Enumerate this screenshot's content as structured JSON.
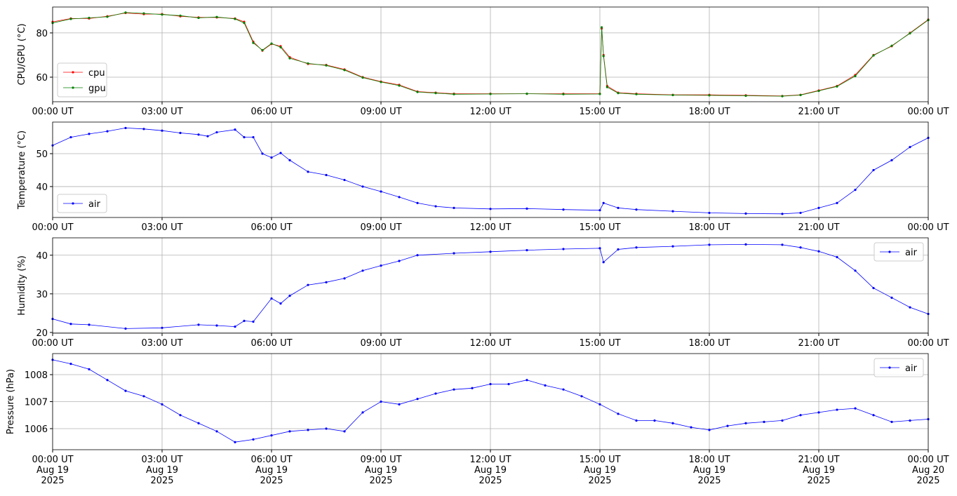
{
  "chart_data": [
    {
      "type": "line",
      "y_label": "CPU/GPU (°C)",
      "x": [
        "2025-08-19 00:00",
        "2025-08-19 00:30",
        "2025-08-19 01:00",
        "2025-08-19 01:30",
        "2025-08-19 02:00",
        "2025-08-19 02:30",
        "2025-08-19 03:00",
        "2025-08-19 03:30",
        "2025-08-19 04:00",
        "2025-08-19 04:30",
        "2025-08-19 05:00",
        "2025-08-19 05:15",
        "2025-08-19 05:30",
        "2025-08-19 05:45",
        "2025-08-19 06:00",
        "2025-08-19 06:15",
        "2025-08-19 06:30",
        "2025-08-19 07:00",
        "2025-08-19 07:30",
        "2025-08-19 08:00",
        "2025-08-19 08:30",
        "2025-08-19 09:00",
        "2025-08-19 09:30",
        "2025-08-19 10:00",
        "2025-08-19 10:30",
        "2025-08-19 11:00",
        "2025-08-19 12:00",
        "2025-08-19 13:00",
        "2025-08-19 14:00",
        "2025-08-19 15:00",
        "2025-08-19 15:03",
        "2025-08-19 15:06",
        "2025-08-19 15:12",
        "2025-08-19 15:30",
        "2025-08-19 16:00",
        "2025-08-19 17:00",
        "2025-08-19 18:00",
        "2025-08-19 19:00",
        "2025-08-19 20:00",
        "2025-08-19 20:30",
        "2025-08-19 21:00",
        "2025-08-19 21:30",
        "2025-08-19 22:00",
        "2025-08-19 22:30",
        "2025-08-19 23:00",
        "2025-08-19 23:30",
        "2025-08-20 00:00"
      ],
      "series": [
        {
          "name": "cpu",
          "color": "#ff0000",
          "values": [
            85,
            86.5,
            86.5,
            87.5,
            89,
            88.5,
            88.5,
            87.5,
            87,
            87,
            86.5,
            85,
            76,
            72,
            75,
            74,
            69,
            66,
            65.5,
            63.5,
            60,
            58,
            56.5,
            53.5,
            53,
            52.5,
            52.5,
            52.5,
            52.5,
            52.5,
            82,
            70,
            56,
            53,
            52.5,
            52,
            52,
            51.8,
            51.5,
            52,
            54,
            56,
            61,
            70,
            74,
            80,
            86
          ]
        },
        {
          "name": "gpu",
          "color": "#008000",
          "values": [
            84.5,
            86.3,
            86.8,
            87.3,
            89.2,
            88.8,
            88.3,
            87.8,
            86.8,
            87.2,
            86.3,
            84.5,
            75.5,
            72.2,
            75.2,
            73.5,
            68.5,
            66.2,
            65.3,
            63.2,
            59.8,
            57.8,
            56.2,
            53.3,
            52.8,
            52.3,
            52.4,
            52.5,
            52.3,
            52.4,
            82.5,
            69.5,
            55.5,
            52.8,
            52.3,
            51.9,
            51.8,
            51.6,
            51.4,
            51.9,
            53.8,
            55.8,
            60.5,
            69.8,
            74.2,
            79.8,
            85.8
          ]
        }
      ],
      "xlim": [
        "2025-08-19 00:00",
        "2025-08-20 00:00"
      ],
      "xticks": [
        {
          "value": "2025-08-19 00:00",
          "label": "00:00 UT"
        },
        {
          "value": "2025-08-19 03:00",
          "label": "03:00 UT"
        },
        {
          "value": "2025-08-19 06:00",
          "label": "06:00 UT"
        },
        {
          "value": "2025-08-19 09:00",
          "label": "09:00 UT"
        },
        {
          "value": "2025-08-19 12:00",
          "label": "12:00 UT"
        },
        {
          "value": "2025-08-19 15:00",
          "label": "15:00 UT"
        },
        {
          "value": "2025-08-19 18:00",
          "label": "18:00 UT"
        },
        {
          "value": "2025-08-19 21:00",
          "label": "21:00 UT"
        },
        {
          "value": "2025-08-20 00:00",
          "label": "00:00 UT"
        }
      ],
      "ylim": [
        48.9,
        91.7
      ],
      "yticks": [
        60,
        80
      ],
      "grid": true,
      "legend": "lower left"
    },
    {
      "type": "line",
      "y_label": "Temperature (°C)",
      "x": [
        "2025-08-19 00:00",
        "2025-08-19 00:30",
        "2025-08-19 01:00",
        "2025-08-19 01:30",
        "2025-08-19 02:00",
        "2025-08-19 02:30",
        "2025-08-19 03:00",
        "2025-08-19 03:30",
        "2025-08-19 04:00",
        "2025-08-19 04:15",
        "2025-08-19 04:30",
        "2025-08-19 05:00",
        "2025-08-19 05:15",
        "2025-08-19 05:30",
        "2025-08-19 05:45",
        "2025-08-19 06:00",
        "2025-08-19 06:15",
        "2025-08-19 06:30",
        "2025-08-19 07:00",
        "2025-08-19 07:30",
        "2025-08-19 08:00",
        "2025-08-19 08:30",
        "2025-08-19 09:00",
        "2025-08-19 09:30",
        "2025-08-19 10:00",
        "2025-08-19 10:30",
        "2025-08-19 11:00",
        "2025-08-19 12:00",
        "2025-08-19 13:00",
        "2025-08-19 14:00",
        "2025-08-19 15:00",
        "2025-08-19 15:06",
        "2025-08-19 15:30",
        "2025-08-19 16:00",
        "2025-08-19 17:00",
        "2025-08-19 18:00",
        "2025-08-19 19:00",
        "2025-08-19 20:00",
        "2025-08-19 20:30",
        "2025-08-19 21:00",
        "2025-08-19 21:30",
        "2025-08-19 22:00",
        "2025-08-19 22:30",
        "2025-08-19 23:00",
        "2025-08-19 23:30",
        "2025-08-20 00:00"
      ],
      "series": [
        {
          "name": "air",
          "color": "#0000ff",
          "values": [
            52.5,
            55,
            56,
            56.8,
            57.8,
            57.5,
            57,
            56.3,
            55.8,
            55.3,
            56.5,
            57.3,
            55,
            55,
            50,
            48.8,
            50.2,
            48,
            44.5,
            43.5,
            42,
            40,
            38.5,
            36.8,
            35,
            34,
            33.5,
            33.2,
            33.3,
            33,
            32.8,
            35,
            33.5,
            33,
            32.5,
            32,
            31.8,
            31.7,
            32,
            33.5,
            35,
            39,
            45,
            48,
            52,
            54.8
          ]
        }
      ],
      "xlim": [
        "2025-08-19 00:00",
        "2025-08-20 00:00"
      ],
      "xticks": [
        {
          "value": "2025-08-19 00:00",
          "label": "00:00 UT"
        },
        {
          "value": "2025-08-19 03:00",
          "label": "03:00 UT"
        },
        {
          "value": "2025-08-19 06:00",
          "label": "06:00 UT"
        },
        {
          "value": "2025-08-19 09:00",
          "label": "09:00 UT"
        },
        {
          "value": "2025-08-19 12:00",
          "label": "12:00 UT"
        },
        {
          "value": "2025-08-19 15:00",
          "label": "15:00 UT"
        },
        {
          "value": "2025-08-19 18:00",
          "label": "18:00 UT"
        },
        {
          "value": "2025-08-19 21:00",
          "label": "21:00 UT"
        },
        {
          "value": "2025-08-20 00:00",
          "label": "00:00 UT"
        }
      ],
      "ylim": [
        30.6,
        59.6
      ],
      "yticks": [
        40,
        50
      ],
      "grid": true,
      "legend": "lower left"
    },
    {
      "type": "line",
      "y_label": "Humidity (%)",
      "x": [
        "2025-08-19 00:00",
        "2025-08-19 00:30",
        "2025-08-19 01:00",
        "2025-08-19 02:00",
        "2025-08-19 03:00",
        "2025-08-19 04:00",
        "2025-08-19 04:30",
        "2025-08-19 05:00",
        "2025-08-19 05:15",
        "2025-08-19 05:30",
        "2025-08-19 06:00",
        "2025-08-19 06:15",
        "2025-08-19 06:30",
        "2025-08-19 07:00",
        "2025-08-19 07:30",
        "2025-08-19 08:00",
        "2025-08-19 08:30",
        "2025-08-19 09:00",
        "2025-08-19 09:30",
        "2025-08-19 10:00",
        "2025-08-19 11:00",
        "2025-08-19 12:00",
        "2025-08-19 13:00",
        "2025-08-19 14:00",
        "2025-08-19 15:00",
        "2025-08-19 15:06",
        "2025-08-19 15:30",
        "2025-08-19 16:00",
        "2025-08-19 17:00",
        "2025-08-19 18:00",
        "2025-08-19 19:00",
        "2025-08-19 20:00",
        "2025-08-19 20:30",
        "2025-08-19 21:00",
        "2025-08-19 21:30",
        "2025-08-19 22:00",
        "2025-08-19 22:30",
        "2025-08-19 23:00",
        "2025-08-19 23:30",
        "2025-08-20 00:00"
      ],
      "series": [
        {
          "name": "air",
          "color": "#0000ff",
          "values": [
            23.5,
            22.2,
            22,
            21,
            21.2,
            22,
            21.8,
            21.5,
            23,
            22.8,
            28.8,
            27.5,
            29.5,
            32.3,
            33,
            34,
            36,
            37.3,
            38.5,
            40,
            40.5,
            40.9,
            41.3,
            41.6,
            41.8,
            38.2,
            41.5,
            42,
            42.3,
            42.7,
            42.8,
            42.7,
            42,
            41,
            39.5,
            36,
            31.5,
            29,
            26.5,
            24.8
          ]
        }
      ],
      "xlim": [
        "2025-08-19 00:00",
        "2025-08-20 00:00"
      ],
      "xticks": [
        {
          "value": "2025-08-19 00:00",
          "label": "00:00 UT"
        },
        {
          "value": "2025-08-19 03:00",
          "label": "03:00 UT"
        },
        {
          "value": "2025-08-19 06:00",
          "label": "06:00 UT"
        },
        {
          "value": "2025-08-19 09:00",
          "label": "09:00 UT"
        },
        {
          "value": "2025-08-19 12:00",
          "label": "12:00 UT"
        },
        {
          "value": "2025-08-19 15:00",
          "label": "15:00 UT"
        },
        {
          "value": "2025-08-19 18:00",
          "label": "18:00 UT"
        },
        {
          "value": "2025-08-19 21:00",
          "label": "21:00 UT"
        },
        {
          "value": "2025-08-20 00:00",
          "label": "00:00 UT"
        }
      ],
      "ylim": [
        19.8,
        44.5
      ],
      "yticks": [
        20,
        30,
        40
      ],
      "grid": true,
      "legend": "upper right"
    },
    {
      "type": "line",
      "y_label": "Pressure (hPa)",
      "x": [
        "2025-08-19 00:00",
        "2025-08-19 00:30",
        "2025-08-19 01:00",
        "2025-08-19 01:30",
        "2025-08-19 02:00",
        "2025-08-19 02:30",
        "2025-08-19 03:00",
        "2025-08-19 03:30",
        "2025-08-19 04:00",
        "2025-08-19 04:30",
        "2025-08-19 05:00",
        "2025-08-19 05:30",
        "2025-08-19 06:00",
        "2025-08-19 06:30",
        "2025-08-19 07:00",
        "2025-08-19 07:30",
        "2025-08-19 08:00",
        "2025-08-19 08:30",
        "2025-08-19 09:00",
        "2025-08-19 09:30",
        "2025-08-19 10:00",
        "2025-08-19 10:30",
        "2025-08-19 11:00",
        "2025-08-19 11:30",
        "2025-08-19 12:00",
        "2025-08-19 12:30",
        "2025-08-19 13:00",
        "2025-08-19 13:30",
        "2025-08-19 14:00",
        "2025-08-19 14:30",
        "2025-08-19 15:00",
        "2025-08-19 15:30",
        "2025-08-19 16:00",
        "2025-08-19 16:30",
        "2025-08-19 17:00",
        "2025-08-19 17:30",
        "2025-08-19 18:00",
        "2025-08-19 18:30",
        "2025-08-19 19:00",
        "2025-08-19 19:30",
        "2025-08-19 20:00",
        "2025-08-19 20:30",
        "2025-08-19 21:00",
        "2025-08-19 21:30",
        "2025-08-19 22:00",
        "2025-08-19 22:30",
        "2025-08-19 23:00",
        "2025-08-19 23:30",
        "2025-08-20 00:00"
      ],
      "series": [
        {
          "name": "air",
          "color": "#0000ff",
          "values": [
            1008.55,
            1008.4,
            1008.2,
            1007.8,
            1007.4,
            1007.2,
            1006.9,
            1006.5,
            1006.2,
            1005.9,
            1005.5,
            1005.6,
            1005.75,
            1005.9,
            1005.95,
            1006,
            1005.9,
            1006.6,
            1007,
            1006.9,
            1007.1,
            1007.3,
            1007.45,
            1007.5,
            1007.65,
            1007.65,
            1007.8,
            1007.6,
            1007.45,
            1007.2,
            1006.9,
            1006.55,
            1006.3,
            1006.3,
            1006.2,
            1006.05,
            1005.95,
            1006.1,
            1006.2,
            1006.25,
            1006.3,
            1006.5,
            1006.6,
            1006.7,
            1006.75,
            1006.5,
            1006.25,
            1006.3,
            1006.35
          ]
        }
      ],
      "xlim": [
        "2025-08-19 00:00",
        "2025-08-20 00:00"
      ],
      "xticks": [
        {
          "value": "2025-08-19 00:00",
          "label": "00:00 UT\nAug 19\n2025"
        },
        {
          "value": "2025-08-19 03:00",
          "label": "03:00 UT\nAug 19\n2025"
        },
        {
          "value": "2025-08-19 06:00",
          "label": "06:00 UT\nAug 19\n2025"
        },
        {
          "value": "2025-08-19 09:00",
          "label": "09:00 UT\nAug 19\n2025"
        },
        {
          "value": "2025-08-19 12:00",
          "label": "12:00 UT\nAug 19\n2025"
        },
        {
          "value": "2025-08-19 15:00",
          "label": "15:00 UT\nAug 19\n2025"
        },
        {
          "value": "2025-08-19 18:00",
          "label": "18:00 UT\nAug 19\n2025"
        },
        {
          "value": "2025-08-19 21:00",
          "label": "21:00 UT\nAug 19\n2025"
        },
        {
          "value": "2025-08-20 00:00",
          "label": "00:00 UT\nAug 20\n2025"
        }
      ],
      "ylim": [
        1005.22,
        1008.78
      ],
      "yticks": [
        1006,
        1007,
        1008
      ],
      "grid": true,
      "legend": "upper right"
    }
  ]
}
